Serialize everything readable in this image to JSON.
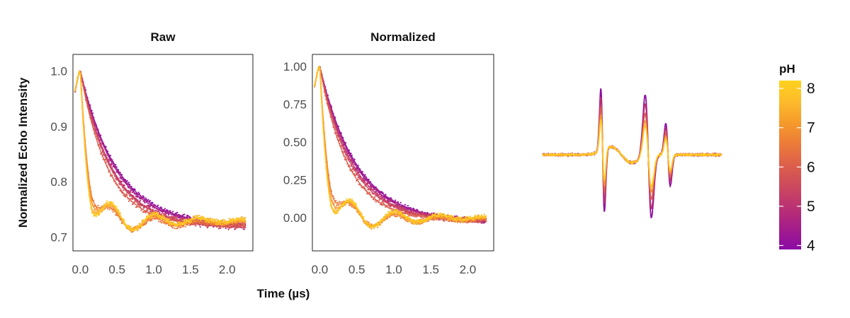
{
  "chart_data": [
    {
      "type": "scatter",
      "title": "Raw",
      "ylabel": "Normalized Echo Intensity",
      "xlim": [
        -0.1,
        2.35
      ],
      "ylim": [
        0.675,
        1.03
      ],
      "x_ticks": [
        0.0,
        0.5,
        1.0,
        1.5,
        2.0
      ],
      "x_tick_labels": [
        "0.0",
        "0.5",
        "1.0",
        "1.5",
        "2.0"
      ],
      "y_ticks": [
        0.7,
        0.8,
        0.9,
        1.0
      ],
      "y_tick_labels": [
        "0.7",
        "0.8",
        "0.9",
        "1.0"
      ],
      "grid": false,
      "series": [
        {
          "pH": 4.0,
          "peak": 1.0,
          "floor": 0.72,
          "decay": 0.5,
          "osc": 0.0
        },
        {
          "pH": 4.5,
          "peak": 1.0,
          "floor": 0.72,
          "decay": 0.48,
          "osc": 0.0
        },
        {
          "pH": 5.0,
          "peak": 1.0,
          "floor": 0.715,
          "decay": 0.45,
          "osc": 0.0
        },
        {
          "pH": 5.5,
          "peak": 1.0,
          "floor": 0.72,
          "decay": 0.42,
          "osc": 0.0
        },
        {
          "pH": 6.0,
          "peak": 1.0,
          "floor": 0.72,
          "decay": 0.38,
          "osc": 0.0
        },
        {
          "pH": 6.5,
          "peak": 1.0,
          "floor": 0.725,
          "decay": 0.12,
          "osc": 0.035
        },
        {
          "pH": 7.0,
          "peak": 1.0,
          "floor": 0.728,
          "decay": 0.11,
          "osc": 0.04
        },
        {
          "pH": 7.5,
          "peak": 1.0,
          "floor": 0.73,
          "decay": 0.1,
          "osc": 0.045
        },
        {
          "pH": 8.0,
          "peak": 1.0,
          "floor": 0.73,
          "decay": 0.1,
          "osc": 0.05
        }
      ]
    },
    {
      "type": "scatter",
      "title": "Normalized",
      "xlabel": "Time (µs)",
      "xlim": [
        -0.1,
        2.35
      ],
      "ylim": [
        -0.22,
        1.08
      ],
      "x_ticks": [
        0.0,
        0.5,
        1.0,
        1.5,
        2.0
      ],
      "x_tick_labels": [
        "0.0",
        "0.5",
        "1.0",
        "1.5",
        "2.0"
      ],
      "y_ticks": [
        0.0,
        0.25,
        0.5,
        0.75,
        1.0
      ],
      "y_tick_labels": [
        "0.00",
        "0.25",
        "0.50",
        "0.75",
        "1.00"
      ],
      "grid": false,
      "series": [
        {
          "pH": 4.0,
          "peak": 1.0,
          "floor": -0.03,
          "decay": 0.5,
          "osc": 0.0
        },
        {
          "pH": 4.5,
          "peak": 1.0,
          "floor": -0.03,
          "decay": 0.48,
          "osc": 0.0
        },
        {
          "pH": 5.0,
          "peak": 1.0,
          "floor": -0.03,
          "decay": 0.45,
          "osc": 0.0
        },
        {
          "pH": 5.5,
          "peak": 1.0,
          "floor": -0.02,
          "decay": 0.42,
          "osc": 0.0
        },
        {
          "pH": 6.0,
          "peak": 1.0,
          "floor": -0.02,
          "decay": 0.38,
          "osc": 0.0
        },
        {
          "pH": 6.5,
          "peak": 1.0,
          "floor": -0.01,
          "decay": 0.12,
          "osc": 0.13
        },
        {
          "pH": 7.0,
          "peak": 1.0,
          "floor": -0.01,
          "decay": 0.11,
          "osc": 0.15
        },
        {
          "pH": 7.5,
          "peak": 1.0,
          "floor": 0.0,
          "decay": 0.1,
          "osc": 0.17
        },
        {
          "pH": 8.0,
          "peak": 1.0,
          "floor": 0.0,
          "decay": 0.1,
          "osc": 0.18
        }
      ]
    },
    {
      "type": "line",
      "title": "",
      "xlim": [
        -1.0,
        1.0
      ],
      "ylim": [
        -1.1,
        1.1
      ],
      "axes": false,
      "series": [
        {
          "pH": 4.0,
          "amp": 1.0
        },
        {
          "pH": 5.0,
          "amp": 0.85
        },
        {
          "pH": 6.0,
          "amp": 0.7
        },
        {
          "pH": 7.0,
          "amp": 0.58
        },
        {
          "pH": 8.0,
          "amp": 0.5
        }
      ]
    }
  ],
  "legend": {
    "title": "pH",
    "range": [
      3.9,
      8.2
    ],
    "ticks": [
      4,
      5,
      6,
      7,
      8
    ],
    "tick_labels": [
      "4",
      "5",
      "6",
      "7",
      "8"
    ],
    "colors": [
      "#8b0aa5",
      "#a41d8a",
      "#bb3173",
      "#cc4a5d",
      "#dd5f4b",
      "#ec7b39",
      "#f69a2b",
      "#fdbb2b",
      "#ffd21f"
    ]
  }
}
